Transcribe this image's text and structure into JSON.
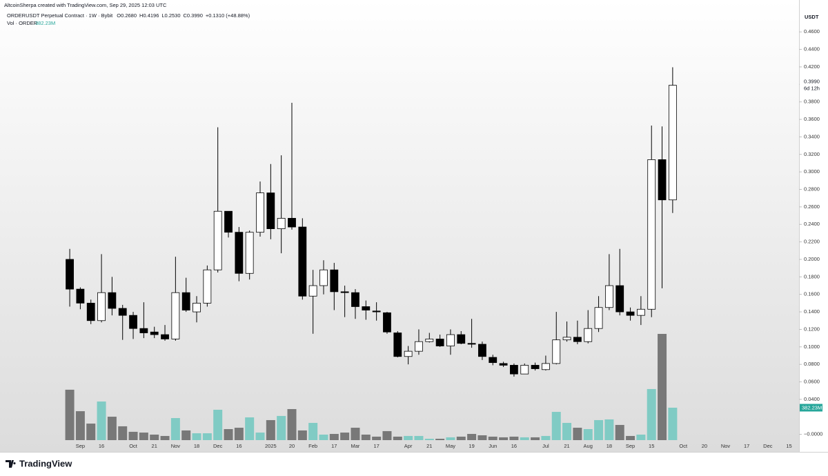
{
  "chart_data": {
    "type": "candlestick",
    "watermark": "AltcoinSherpa created with TradingView.com, Sep 29, 2025 12:03 UTC",
    "symbol": "ORDERUSDT Perpetual Contract · 1W · Bybit",
    "legend_values": [
      "O0.2680",
      "H0.4196",
      "L0.2530",
      "C0.3990",
      "+0.1310 (+48.88%)"
    ],
    "volume_title": "Vol · ORDER",
    "currency": "USDT",
    "countdown": "6d 12h",
    "last_price": {
      "value": 0.399,
      "label": "0.3990"
    },
    "volume_tag": {
      "value": 382.23,
      "label": "382.23M"
    },
    "logo": "TradingView",
    "up_color": "#ffffff",
    "down_color": "#000000",
    "volume_up_color": "#80cbc4",
    "volume_down_color": "#787878",
    "categories": [
      null,
      "Sep",
      null,
      "16",
      null,
      null,
      "Oct",
      null,
      "21",
      null,
      "Nov",
      null,
      "18",
      null,
      "Dec",
      null,
      "16",
      null,
      null,
      "2025",
      null,
      "20",
      null,
      "Feb",
      null,
      "17",
      null,
      "Mar",
      null,
      "17",
      null,
      null,
      "Apr",
      null,
      "21",
      null,
      "May",
      null,
      "19",
      null,
      "Jun",
      null,
      "16",
      null,
      null,
      "Jul",
      null,
      "21",
      null,
      "Aug",
      null,
      "18",
      null,
      "Sep",
      null,
      "15",
      null,
      null,
      "Oct",
      null,
      "20",
      null,
      "Nov",
      null,
      "17",
      null,
      "Dec",
      null,
      "15"
    ],
    "open": [
      0.2,
      0.166,
      0.15,
      0.13,
      0.162,
      0.144,
      0.136,
      0.121,
      0.117,
      0.114,
      0.109,
      0.162,
      0.14,
      0.15,
      0.188,
      0.255,
      0.231,
      0.184,
      0.231,
      0.276,
      0.235,
      0.247,
      0.237,
      0.158,
      0.17,
      0.188,
      0.163,
      0.162,
      0.146,
      0.141,
      0.139,
      0.116,
      0.089,
      0.095,
      0.106,
      0.109,
      0.101,
      0.114,
      0.104,
      0.103,
      0.088,
      0.081,
      0.079,
      0.069,
      0.079,
      0.074,
      0.081,
      0.108,
      0.111,
      0.106,
      0.121,
      0.145,
      0.17,
      0.14,
      0.136,
      0.143,
      0.314,
      0.268,
      null,
      null,
      null,
      null,
      null,
      null,
      null,
      null,
      null,
      null,
      null
    ],
    "high": [
      0.212,
      0.168,
      0.154,
      0.206,
      0.18,
      0.148,
      0.14,
      0.151,
      0.123,
      0.125,
      0.203,
      0.179,
      0.158,
      0.193,
      0.351,
      0.255,
      0.237,
      0.233,
      0.289,
      0.309,
      0.319,
      0.379,
      0.247,
      0.188,
      0.199,
      0.196,
      0.17,
      0.166,
      0.153,
      0.151,
      0.14,
      0.118,
      0.101,
      0.12,
      0.116,
      0.114,
      0.12,
      0.118,
      0.132,
      0.106,
      0.091,
      0.083,
      0.081,
      0.081,
      0.082,
      0.09,
      0.14,
      0.129,
      0.13,
      0.142,
      0.158,
      0.206,
      0.212,
      0.145,
      0.158,
      0.353,
      0.352,
      0.4196,
      null,
      null,
      null,
      null,
      null,
      null,
      null,
      null,
      null,
      null,
      null
    ],
    "low": [
      0.146,
      0.143,
      0.126,
      0.128,
      0.136,
      0.108,
      0.109,
      0.11,
      0.11,
      0.107,
      0.107,
      0.14,
      0.128,
      0.146,
      0.185,
      0.225,
      0.175,
      0.177,
      0.226,
      0.223,
      0.207,
      0.234,
      0.154,
      0.115,
      0.16,
      0.142,
      0.134,
      0.132,
      0.131,
      0.13,
      0.115,
      0.088,
      0.08,
      0.091,
      0.105,
      0.1,
      0.091,
      0.103,
      0.099,
      0.085,
      0.079,
      0.077,
      0.066,
      0.069,
      0.073,
      0.073,
      0.08,
      0.106,
      0.103,
      0.104,
      0.117,
      0.142,
      0.136,
      0.13,
      0.125,
      0.134,
      0.167,
      0.253,
      null,
      null,
      null,
      null,
      null,
      null,
      null,
      null,
      null,
      null,
      null
    ],
    "close": [
      0.166,
      0.15,
      0.13,
      0.162,
      0.144,
      0.136,
      0.121,
      0.116,
      0.114,
      0.109,
      0.162,
      0.142,
      0.15,
      0.188,
      0.255,
      0.231,
      0.184,
      0.231,
      0.276,
      0.235,
      0.247,
      0.237,
      0.158,
      0.17,
      0.188,
      0.163,
      0.162,
      0.146,
      0.142,
      0.14,
      0.117,
      0.089,
      0.095,
      0.106,
      0.109,
      0.101,
      0.114,
      0.104,
      0.103,
      0.089,
      0.082,
      0.079,
      0.069,
      0.079,
      0.075,
      0.081,
      0.108,
      0.111,
      0.106,
      0.121,
      0.145,
      0.17,
      0.14,
      0.136,
      0.143,
      0.314,
      0.268,
      0.399,
      null,
      null,
      null,
      null,
      null,
      null,
      null,
      null,
      null,
      null,
      null
    ],
    "volume": [
      594,
      341,
      195,
      455,
      276,
      163,
      98,
      89,
      65,
      49,
      260,
      114,
      81,
      81,
      358,
      130,
      146,
      268,
      89,
      236,
      285,
      366,
      114,
      203,
      65,
      73,
      89,
      146,
      65,
      41,
      106,
      41,
      49,
      49,
      16,
      16,
      33,
      41,
      73,
      57,
      41,
      33,
      41,
      33,
      33,
      49,
      333,
      203,
      146,
      130,
      236,
      244,
      179,
      49,
      65,
      602,
      1252,
      382.23,
      null,
      null,
      null,
      null,
      null,
      null,
      null,
      null,
      null,
      null,
      null
    ],
    "ylim": [
      -0.02,
      0.487
    ],
    "yticks": [
      {
        "value": 0.46,
        "label": "0.4600"
      },
      {
        "value": 0.44,
        "label": "0.4400"
      },
      {
        "value": 0.42,
        "label": "0.4200"
      },
      {
        "value": 0.4,
        "label": "0.4000"
      },
      {
        "value": 0.38,
        "label": "0.3800"
      },
      {
        "value": 0.36,
        "label": "0.3600"
      },
      {
        "value": 0.34,
        "label": "0.3400"
      },
      {
        "value": 0.32,
        "label": "0.3200"
      },
      {
        "value": 0.3,
        "label": "0.3000"
      },
      {
        "value": 0.28,
        "label": "0.2800"
      },
      {
        "value": 0.26,
        "label": "0.2600"
      },
      {
        "value": 0.24,
        "label": "0.2400"
      },
      {
        "value": 0.22,
        "label": "0.2200"
      },
      {
        "value": 0.2,
        "label": "0.2000"
      },
      {
        "value": 0.18,
        "label": "0.1800"
      },
      {
        "value": 0.16,
        "label": "0.1600"
      },
      {
        "value": 0.14,
        "label": "0.1400"
      },
      {
        "value": 0.12,
        "label": "0.1200"
      },
      {
        "value": 0.1,
        "label": "0.1000"
      },
      {
        "value": 0.08,
        "label": "0.0800"
      },
      {
        "value": 0.06,
        "label": "0.0600"
      },
      {
        "value": 0.04,
        "label": "0.0400"
      },
      {
        "value": 0,
        "label": "−0.0000"
      }
    ],
    "grid": false
  }
}
